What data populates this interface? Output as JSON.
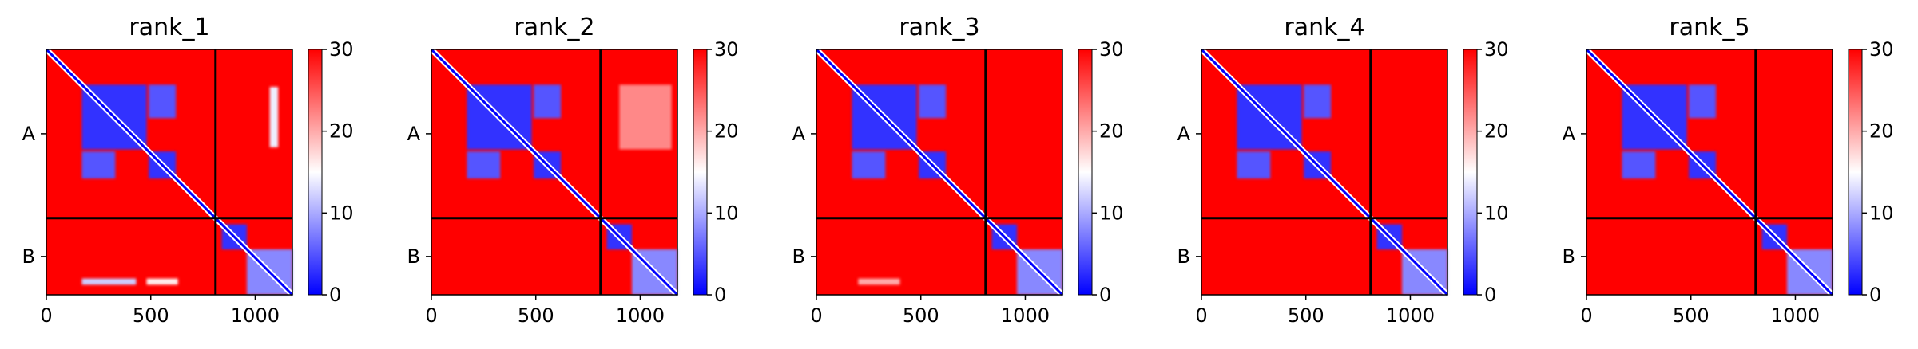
{
  "colors": {
    "low": "#0000ff",
    "mid": "#ffffff",
    "high": "#ff0000",
    "diagonal": "#0000ff",
    "boundary": "#000000"
  },
  "chart_data": [
    {
      "type": "heatmap",
      "title": "rank_1",
      "xlim": [
        0,
        1178
      ],
      "xticks": [
        0,
        500,
        1000
      ],
      "xtick_labels": [
        "0",
        "500",
        "1000"
      ],
      "chain_labels": [
        "A",
        "B"
      ],
      "chain_boundaries": [
        0,
        810,
        1178
      ],
      "colorbar": {
        "min": 0,
        "max": 30,
        "ticks": [
          0,
          10,
          20,
          30
        ],
        "tick_labels": [
          "0",
          "10",
          "20",
          "30"
        ],
        "cmap": "bwr"
      },
      "low_value_blocks": [
        {
          "x": [
            170,
            480
          ],
          "y": [
            170,
            480
          ],
          "value": 3
        },
        {
          "x": [
            490,
            620
          ],
          "y": [
            170,
            330
          ],
          "value": 5
        },
        {
          "x": [
            170,
            330
          ],
          "y": [
            490,
            620
          ],
          "value": 5
        },
        {
          "x": [
            490,
            620
          ],
          "y": [
            490,
            620
          ],
          "value": 3
        },
        {
          "x": [
            840,
            960
          ],
          "y": [
            840,
            960
          ],
          "value": 3
        },
        {
          "x": [
            960,
            1178
          ],
          "y": [
            960,
            1178
          ],
          "value": 8
        },
        {
          "x": [
            170,
            430
          ],
          "y": [
            1100,
            1130
          ],
          "value": 12
        },
        {
          "x": [
            480,
            630
          ],
          "y": [
            1100,
            1130
          ],
          "value": 16
        },
        {
          "x": [
            1070,
            1110
          ],
          "y": [
            180,
            470
          ],
          "value": 14
        }
      ]
    },
    {
      "type": "heatmap",
      "title": "rank_2",
      "xlim": [
        0,
        1178
      ],
      "xticks": [
        0,
        500,
        1000
      ],
      "xtick_labels": [
        "0",
        "500",
        "1000"
      ],
      "chain_labels": [
        "A",
        "B"
      ],
      "chain_boundaries": [
        0,
        810,
        1178
      ],
      "colorbar": {
        "min": 0,
        "max": 30,
        "ticks": [
          0,
          10,
          20,
          30
        ],
        "tick_labels": [
          "0",
          "10",
          "20",
          "30"
        ],
        "cmap": "bwr"
      },
      "low_value_blocks": [
        {
          "x": [
            170,
            480
          ],
          "y": [
            170,
            480
          ],
          "value": 3
        },
        {
          "x": [
            490,
            620
          ],
          "y": [
            170,
            330
          ],
          "value": 5
        },
        {
          "x": [
            170,
            330
          ],
          "y": [
            490,
            620
          ],
          "value": 5
        },
        {
          "x": [
            490,
            620
          ],
          "y": [
            490,
            620
          ],
          "value": 3
        },
        {
          "x": [
            840,
            960
          ],
          "y": [
            840,
            960
          ],
          "value": 3
        },
        {
          "x": [
            960,
            1178
          ],
          "y": [
            960,
            1178
          ],
          "value": 8
        },
        {
          "x": [
            900,
            1150
          ],
          "y": [
            170,
            480
          ],
          "value": 22
        }
      ]
    },
    {
      "type": "heatmap",
      "title": "rank_3",
      "xlim": [
        0,
        1178
      ],
      "xticks": [
        0,
        500,
        1000
      ],
      "xtick_labels": [
        "0",
        "500",
        "1000"
      ],
      "chain_labels": [
        "A",
        "B"
      ],
      "chain_boundaries": [
        0,
        810,
        1178
      ],
      "colorbar": {
        "min": 0,
        "max": 30,
        "ticks": [
          0,
          10,
          20,
          30
        ],
        "tick_labels": [
          "0",
          "10",
          "20",
          "30"
        ],
        "cmap": "bwr"
      },
      "low_value_blocks": [
        {
          "x": [
            170,
            480
          ],
          "y": [
            170,
            480
          ],
          "value": 3
        },
        {
          "x": [
            490,
            620
          ],
          "y": [
            170,
            330
          ],
          "value": 5
        },
        {
          "x": [
            170,
            330
          ],
          "y": [
            490,
            620
          ],
          "value": 5
        },
        {
          "x": [
            490,
            620
          ],
          "y": [
            490,
            620
          ],
          "value": 3
        },
        {
          "x": [
            840,
            960
          ],
          "y": [
            840,
            960
          ],
          "value": 3
        },
        {
          "x": [
            960,
            1178
          ],
          "y": [
            960,
            1178
          ],
          "value": 8
        },
        {
          "x": [
            200,
            400
          ],
          "y": [
            1100,
            1130
          ],
          "value": 20
        }
      ]
    },
    {
      "type": "heatmap",
      "title": "rank_4",
      "xlim": [
        0,
        1178
      ],
      "xticks": [
        0,
        500,
        1000
      ],
      "xtick_labels": [
        "0",
        "500",
        "1000"
      ],
      "chain_labels": [
        "A",
        "B"
      ],
      "chain_boundaries": [
        0,
        810,
        1178
      ],
      "colorbar": {
        "min": 0,
        "max": 30,
        "ticks": [
          0,
          10,
          20,
          30
        ],
        "tick_labels": [
          "0",
          "10",
          "20",
          "30"
        ],
        "cmap": "bwr"
      },
      "low_value_blocks": [
        {
          "x": [
            170,
            480
          ],
          "y": [
            170,
            480
          ],
          "value": 3
        },
        {
          "x": [
            490,
            620
          ],
          "y": [
            170,
            330
          ],
          "value": 5
        },
        {
          "x": [
            170,
            330
          ],
          "y": [
            490,
            620
          ],
          "value": 5
        },
        {
          "x": [
            490,
            620
          ],
          "y": [
            490,
            620
          ],
          "value": 3
        },
        {
          "x": [
            840,
            960
          ],
          "y": [
            840,
            960
          ],
          "value": 3
        },
        {
          "x": [
            960,
            1178
          ],
          "y": [
            960,
            1178
          ],
          "value": 8
        }
      ]
    },
    {
      "type": "heatmap",
      "title": "rank_5",
      "xlim": [
        0,
        1178
      ],
      "xticks": [
        0,
        500,
        1000
      ],
      "xtick_labels": [
        "0",
        "500",
        "1000"
      ],
      "chain_labels": [
        "A",
        "B"
      ],
      "chain_boundaries": [
        0,
        810,
        1178
      ],
      "colorbar": {
        "min": 0,
        "max": 30,
        "ticks": [
          0,
          10,
          20,
          30
        ],
        "tick_labels": [
          "0",
          "10",
          "20",
          "30"
        ],
        "cmap": "bwr"
      },
      "low_value_blocks": [
        {
          "x": [
            170,
            480
          ],
          "y": [
            170,
            480
          ],
          "value": 3
        },
        {
          "x": [
            490,
            620
          ],
          "y": [
            170,
            330
          ],
          "value": 5
        },
        {
          "x": [
            170,
            330
          ],
          "y": [
            490,
            620
          ],
          "value": 5
        },
        {
          "x": [
            490,
            620
          ],
          "y": [
            490,
            620
          ],
          "value": 3
        },
        {
          "x": [
            840,
            960
          ],
          "y": [
            840,
            960
          ],
          "value": 3
        },
        {
          "x": [
            960,
            1178
          ],
          "y": [
            960,
            1178
          ],
          "value": 8
        }
      ]
    }
  ]
}
